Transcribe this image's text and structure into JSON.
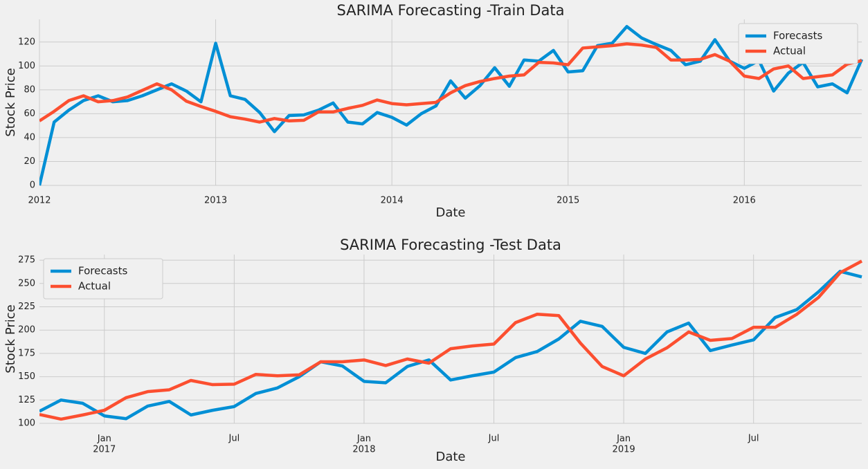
{
  "chart_data": [
    {
      "type": "line",
      "title": "SARIMA Forecasting -Train Data",
      "x_label": "Date",
      "y_label": "Stock Price",
      "x": [
        "2012-01",
        "2012-02",
        "2012-03",
        "2012-04",
        "2012-05",
        "2012-06",
        "2012-07",
        "2012-08",
        "2012-09",
        "2012-10",
        "2012-11",
        "2012-12",
        "2013-01",
        "2013-02",
        "2013-03",
        "2013-04",
        "2013-05",
        "2013-06",
        "2013-07",
        "2013-08",
        "2013-09",
        "2013-10",
        "2013-11",
        "2013-12",
        "2014-01",
        "2014-02",
        "2014-03",
        "2014-04",
        "2014-05",
        "2014-06",
        "2014-07",
        "2014-08",
        "2014-09",
        "2014-10",
        "2014-11",
        "2014-12",
        "2015-01",
        "2015-02",
        "2015-03",
        "2015-04",
        "2015-05",
        "2015-06",
        "2015-07",
        "2015-08",
        "2015-09",
        "2015-10",
        "2015-11",
        "2015-12",
        "2016-01",
        "2016-02",
        "2016-03",
        "2016-04",
        "2016-05",
        "2016-06",
        "2016-07",
        "2016-08",
        "2016-09"
      ],
      "series": [
        {
          "name": "Forecasts",
          "color": "#008fd5",
          "values": [
            0,
            53,
            63,
            71,
            75,
            70,
            71,
            75,
            80,
            85,
            79,
            70,
            119,
            75,
            72,
            61,
            45,
            58.5,
            59,
            63,
            69,
            53,
            51.5,
            61,
            57,
            50.5,
            60,
            66.5,
            87.5,
            73,
            83.5,
            98.5,
            83,
            105,
            104,
            113,
            95,
            96,
            117,
            119,
            133,
            123.5,
            118,
            113,
            101,
            104,
            122,
            104,
            98,
            104.5,
            79,
            94,
            103,
            82.5,
            85,
            77.5,
            105.5
          ]
        },
        {
          "name": "Actual",
          "color": "#fc4f30",
          "values": [
            54,
            62,
            71,
            75,
            70,
            71,
            74,
            79.5,
            85,
            80,
            70.5,
            66,
            62,
            57.5,
            55.5,
            53,
            56,
            54,
            54.5,
            61.5,
            61.5,
            64.5,
            67,
            71.5,
            68.5,
            67.5,
            68.5,
            69.5,
            77.5,
            83.5,
            87,
            89.5,
            91.5,
            92.5,
            103,
            102.5,
            101,
            115,
            116,
            117,
            118.5,
            117.5,
            115.5,
            105,
            105,
            105.5,
            109.5,
            104,
            91.5,
            89.5,
            97.5,
            100,
            89.5,
            91,
            92.5,
            101.5,
            104.5
          ]
        }
      ],
      "xlim": [
        "2012-01",
        "2016-09"
      ],
      "xticks": [
        {
          "value": "2012-01",
          "label": "2012"
        },
        {
          "value": "2013-01",
          "label": "2013"
        },
        {
          "value": "2014-01",
          "label": "2014"
        },
        {
          "value": "2015-01",
          "label": "2015"
        },
        {
          "value": "2016-01",
          "label": "2016"
        }
      ],
      "ylim": [
        0,
        139
      ],
      "yticks": [
        0,
        20,
        40,
        60,
        80,
        100,
        120
      ],
      "grid": true,
      "legend": "upper right"
    },
    {
      "type": "line",
      "title": "SARIMA Forecasting -Test Data",
      "x_label": "Date",
      "y_label": "Stock Price",
      "x": [
        "2016-10",
        "2016-11",
        "2016-12",
        "2017-01",
        "2017-02",
        "2017-03",
        "2017-04",
        "2017-05",
        "2017-06",
        "2017-07",
        "2017-08",
        "2017-09",
        "2017-10",
        "2017-11",
        "2017-12",
        "2018-01",
        "2018-02",
        "2018-03",
        "2018-04",
        "2018-05",
        "2018-06",
        "2018-07",
        "2018-08",
        "2018-09",
        "2018-10",
        "2018-11",
        "2018-12",
        "2019-01",
        "2019-02",
        "2019-03",
        "2019-04",
        "2019-05",
        "2019-06",
        "2019-07",
        "2019-08",
        "2019-09",
        "2019-10",
        "2019-11",
        "2019-12"
      ],
      "series": [
        {
          "name": "Forecasts",
          "color": "#008fd5",
          "values": [
            113,
            125,
            121.5,
            108,
            105,
            118.5,
            123.5,
            109,
            114,
            118,
            132,
            138,
            150,
            166,
            161.5,
            145,
            143.5,
            161,
            168,
            146.5,
            151,
            155,
            170.5,
            177,
            190.5,
            209.5,
            204,
            181.5,
            175,
            198,
            207.5,
            178,
            184,
            189.5,
            213.5,
            222,
            241,
            263,
            257
          ]
        },
        {
          "name": "Actual",
          "color": "#fc4f30",
          "values": [
            109.5,
            104.5,
            109,
            114,
            127.5,
            134,
            136,
            146,
            141.5,
            142,
            152.5,
            151,
            152,
            166,
            166,
            168,
            162,
            169,
            164.5,
            180,
            183,
            185,
            208,
            217,
            215.5,
            186,
            161,
            151,
            169,
            181,
            198,
            189,
            191,
            203,
            203,
            217,
            235,
            261.5,
            274
          ]
        }
      ],
      "xlim": [
        "2016-10",
        "2019-12"
      ],
      "xticks": [
        {
          "value": "2017-01",
          "label": "Jan\n2017"
        },
        {
          "value": "2017-07",
          "label": "Jul"
        },
        {
          "value": "2018-01",
          "label": "Jan\n2018"
        },
        {
          "value": "2018-07",
          "label": "Jul"
        },
        {
          "value": "2019-01",
          "label": "Jan\n2019"
        },
        {
          "value": "2019-07",
          "label": "Jul"
        }
      ],
      "ylim": [
        100,
        281
      ],
      "yticks": [
        100,
        125,
        150,
        175,
        200,
        225,
        250,
        275
      ],
      "grid": true,
      "legend": "upper left"
    }
  ]
}
